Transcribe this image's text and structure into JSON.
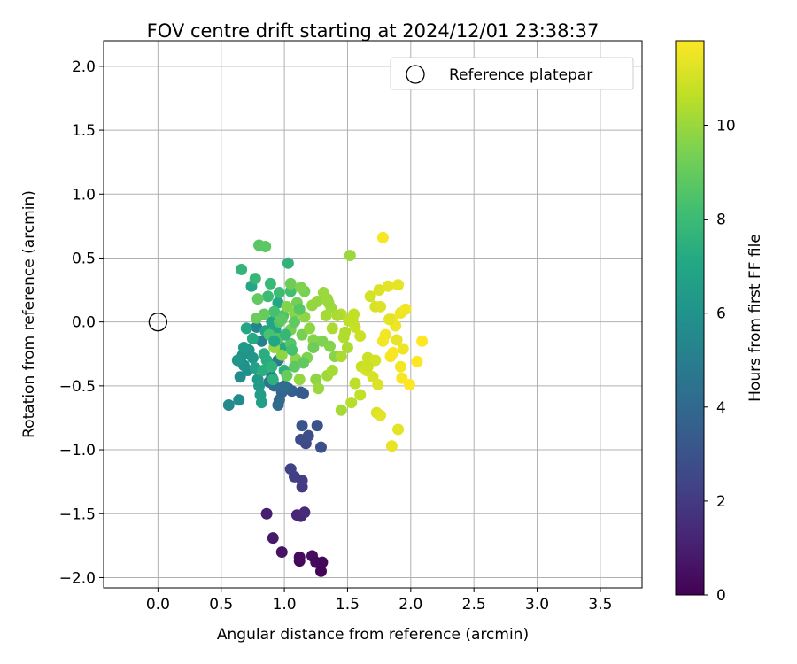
{
  "chart_data": {
    "type": "scatter",
    "title": "FOV centre drift starting at 2024/12/01 23:38:37",
    "xlabel": "Angular distance from reference (arcmin)",
    "ylabel": "Rotation from reference (arcmin)",
    "xlim": [
      -0.43,
      3.83
    ],
    "ylim": [
      -2.08,
      2.2
    ],
    "xticks": [
      0.0,
      0.5,
      1.0,
      1.5,
      2.0,
      2.5,
      3.0,
      3.5
    ],
    "xtick_labels": [
      "0.0",
      "0.5",
      "1.0",
      "1.5",
      "2.0",
      "2.5",
      "3.0",
      "3.5"
    ],
    "yticks": [
      -2.0,
      -1.5,
      -1.0,
      -0.5,
      0.0,
      0.5,
      1.0,
      1.5,
      2.0
    ],
    "ytick_labels": [
      "−2.0",
      "−1.5",
      "−1.0",
      "−0.5",
      "0.0",
      "0.5",
      "1.0",
      "1.5",
      "2.0"
    ],
    "grid": true,
    "legend": {
      "placement": "upper right",
      "entries": [
        {
          "label": "Reference platepar",
          "marker": "open-circle",
          "x": 0.0,
          "y": 0.0
        }
      ]
    },
    "colorbar": {
      "label": "Hours from first FF file",
      "colormap": "viridis",
      "range": [
        0,
        11.8
      ],
      "ticks": [
        0,
        2,
        4,
        6,
        8,
        10
      ],
      "tick_labels": [
        "0",
        "2",
        "4",
        "6",
        "8",
        "10"
      ]
    },
    "reference": {
      "x": 0.0,
      "y": 0.0
    },
    "series": [
      {
        "points": [
          [
            1.12,
            -1.87,
            0.2
          ],
          [
            1.12,
            -1.84,
            0.3
          ],
          [
            1.22,
            -1.83,
            0.4
          ],
          [
            1.25,
            -1.88,
            0.3
          ],
          [
            1.29,
            -1.95,
            0.1
          ],
          [
            1.3,
            -1.88,
            0.2
          ],
          [
            0.98,
            -1.8,
            0.6
          ],
          [
            0.91,
            -1.69,
            0.8
          ],
          [
            0.86,
            -1.5,
            1.0
          ],
          [
            1.1,
            -1.51,
            1.2
          ],
          [
            1.13,
            -1.52,
            1.3
          ],
          [
            1.16,
            -1.49,
            1.4
          ],
          [
            1.14,
            -1.29,
            2.0
          ],
          [
            1.14,
            -1.24,
            2.1
          ],
          [
            1.08,
            -1.21,
            2.2
          ],
          [
            1.05,
            -1.15,
            2.3
          ],
          [
            1.17,
            -0.95,
            2.6
          ],
          [
            1.13,
            -0.92,
            2.7
          ],
          [
            1.19,
            -0.89,
            2.8
          ],
          [
            1.29,
            -0.98,
            2.9
          ],
          [
            1.26,
            -0.81,
            3.0
          ],
          [
            1.14,
            -0.81,
            3.1
          ],
          [
            1.13,
            -0.55,
            3.3
          ],
          [
            1.15,
            -0.56,
            3.4
          ],
          [
            1.06,
            -0.54,
            3.6
          ],
          [
            1.03,
            -0.52,
            3.7
          ],
          [
            0.98,
            -0.55,
            3.8
          ],
          [
            0.96,
            -0.61,
            4.0
          ],
          [
            0.95,
            -0.65,
            4.1
          ],
          [
            1.0,
            -0.5,
            4.2
          ],
          [
            0.92,
            -0.5,
            4.4
          ],
          [
            0.88,
            -0.47,
            4.6
          ],
          [
            0.9,
            -0.43,
            4.8
          ],
          [
            0.95,
            -0.3,
            4.9
          ],
          [
            0.82,
            -0.15,
            5.1
          ],
          [
            0.78,
            -0.04,
            5.3
          ],
          [
            0.56,
            -0.65,
            5.5
          ],
          [
            0.64,
            -0.61,
            5.6
          ],
          [
            0.65,
            -0.43,
            5.7
          ],
          [
            0.71,
            -0.38,
            5.8
          ],
          [
            0.68,
            -0.34,
            5.9
          ],
          [
            0.67,
            -0.26,
            6.0
          ],
          [
            0.72,
            -0.22,
            6.1
          ],
          [
            0.75,
            -0.28,
            6.2
          ],
          [
            0.79,
            -0.45,
            6.3
          ],
          [
            0.8,
            -0.5,
            6.4
          ],
          [
            0.81,
            -0.57,
            6.5
          ],
          [
            0.82,
            -0.63,
            6.6
          ],
          [
            0.77,
            -0.36,
            6.7
          ],
          [
            0.85,
            -0.07,
            6.8
          ],
          [
            0.9,
            0.0,
            6.9
          ],
          [
            0.93,
            -0.06,
            7.0
          ],
          [
            0.74,
            0.28,
            7.0
          ],
          [
            0.95,
            0.15,
            7.1
          ],
          [
            0.98,
            -0.2,
            7.2
          ],
          [
            0.86,
            -0.3,
            7.3
          ],
          [
            0.83,
            -0.38,
            7.4
          ],
          [
            0.91,
            -0.45,
            7.5
          ],
          [
            1.0,
            -0.38,
            7.5
          ],
          [
            1.03,
            0.46,
            7.6
          ],
          [
            0.66,
            0.41,
            7.7
          ],
          [
            0.77,
            0.34,
            7.8
          ],
          [
            0.89,
            0.3,
            7.9
          ],
          [
            0.87,
            0.2,
            8.0
          ],
          [
            0.96,
            0.23,
            8.1
          ],
          [
            1.05,
            0.24,
            8.2
          ],
          [
            0.92,
            0.08,
            8.3
          ],
          [
            0.99,
            0.05,
            8.4
          ],
          [
            0.95,
            -0.13,
            8.5
          ],
          [
            1.05,
            -0.17,
            8.6
          ],
          [
            0.8,
            0.6,
            8.7
          ],
          [
            0.85,
            0.59,
            8.8
          ],
          [
            0.79,
            0.18,
            8.9
          ],
          [
            0.84,
            0.06,
            9.0
          ],
          [
            0.78,
            0.03,
            9.1
          ],
          [
            1.05,
            0.3,
            9.2
          ],
          [
            1.1,
            0.15,
            9.3
          ],
          [
            1.16,
            0.24,
            9.4
          ],
          [
            1.13,
            0.27,
            9.5
          ],
          [
            1.02,
            0.12,
            9.6
          ],
          [
            1.08,
            0.07,
            9.7
          ],
          [
            1.16,
            0.04,
            9.8
          ],
          [
            1.22,
            0.13,
            9.9
          ],
          [
            1.26,
            0.16,
            9.9
          ],
          [
            1.31,
            0.23,
            10.0
          ],
          [
            1.34,
            0.18,
            10.0
          ],
          [
            1.37,
            0.11,
            10.1
          ],
          [
            1.05,
            -0.06,
            9.3
          ],
          [
            1.14,
            -0.1,
            9.4
          ],
          [
            1.18,
            -0.28,
            9.5
          ],
          [
            1.23,
            -0.14,
            9.6
          ],
          [
            1.09,
            -0.29,
            9.7
          ],
          [
            0.98,
            -0.26,
            9.8
          ],
          [
            0.92,
            -0.2,
            9.9
          ],
          [
            1.3,
            -0.15,
            9.5
          ],
          [
            1.36,
            -0.19,
            9.6
          ],
          [
            1.4,
            -0.27,
            9.7
          ],
          [
            1.25,
            -0.45,
            9.8
          ],
          [
            1.12,
            -0.45,
            9.9
          ],
          [
            1.27,
            -0.52,
            10.0
          ],
          [
            1.34,
            -0.42,
            10.1
          ],
          [
            1.38,
            -0.38,
            10.2
          ],
          [
            1.45,
            -0.27,
            10.3
          ],
          [
            1.5,
            -0.2,
            10.3
          ],
          [
            1.48,
            -0.08,
            10.4
          ],
          [
            1.45,
            0.06,
            10.5
          ],
          [
            1.51,
            0.01,
            10.6
          ],
          [
            1.55,
            0.06,
            10.7
          ],
          [
            1.56,
            -0.04,
            10.8
          ],
          [
            1.6,
            -0.11,
            10.9
          ],
          [
            1.52,
            0.52,
            10.0
          ],
          [
            1.53,
            -0.63,
            10.5
          ],
          [
            1.56,
            -0.48,
            10.6
          ],
          [
            1.61,
            -0.35,
            10.8
          ],
          [
            1.66,
            -0.28,
            10.9
          ],
          [
            1.72,
            -0.3,
            11.0
          ],
          [
            1.65,
            -0.38,
            11.1
          ],
          [
            1.7,
            -0.43,
            11.1
          ],
          [
            1.74,
            -0.49,
            11.2
          ],
          [
            1.45,
            -0.69,
            10.2
          ],
          [
            1.73,
            -0.71,
            11.2
          ],
          [
            1.76,
            -0.73,
            11.3
          ],
          [
            1.85,
            -0.97,
            11.4
          ],
          [
            1.9,
            -0.84,
            11.3
          ],
          [
            1.68,
            0.2,
            11.0
          ],
          [
            1.72,
            0.12,
            11.1
          ],
          [
            1.75,
            0.25,
            11.2
          ],
          [
            1.82,
            0.28,
            11.3
          ],
          [
            1.9,
            0.29,
            11.4
          ],
          [
            1.92,
            0.07,
            11.5
          ],
          [
            1.96,
            0.1,
            11.6
          ],
          [
            1.78,
            0.66,
            11.7
          ],
          [
            1.85,
            0.02,
            11.5
          ],
          [
            1.88,
            -0.03,
            11.5
          ],
          [
            1.8,
            -0.1,
            11.6
          ],
          [
            1.78,
            -0.15,
            11.6
          ],
          [
            1.86,
            -0.24,
            11.7
          ],
          [
            1.84,
            -0.27,
            11.7
          ],
          [
            1.92,
            -0.35,
            11.6
          ],
          [
            1.93,
            -0.44,
            11.7
          ],
          [
            1.99,
            -0.49,
            11.8
          ],
          [
            2.05,
            -0.31,
            11.8
          ],
          [
            2.09,
            -0.15,
            11.8
          ],
          [
            1.94,
            -0.21,
            11.5
          ],
          [
            1.89,
            -0.14,
            11.4
          ],
          [
            1.83,
            0.02,
            11.3
          ],
          [
            1.76,
            0.12,
            11.2
          ],
          [
            1.54,
            0.02,
            10.7
          ],
          [
            1.47,
            -0.12,
            10.4
          ],
          [
            1.42,
            0.05,
            10.3
          ],
          [
            1.2,
            -0.05,
            9.8
          ],
          [
            1.02,
            -0.42,
            9.0
          ],
          [
            1.08,
            -0.35,
            8.8
          ],
          [
            1.15,
            -0.32,
            8.9
          ],
          [
            1.23,
            -0.2,
            9.2
          ],
          [
            0.88,
            -0.1,
            8.4
          ],
          [
            0.96,
            0.0,
            8.6
          ],
          [
            1.08,
            0.0,
            8.9
          ],
          [
            0.9,
            -0.35,
            7.6
          ],
          [
            0.84,
            -0.25,
            7.4
          ],
          [
            0.75,
            -0.13,
            7.2
          ],
          [
            0.7,
            -0.05,
            7.0
          ],
          [
            0.68,
            -0.2,
            6.3
          ],
          [
            0.63,
            -0.3,
            6.2
          ],
          [
            0.92,
            -0.15,
            7.0
          ],
          [
            1.01,
            -0.1,
            7.8
          ],
          [
            1.12,
            0.1,
            8.7
          ],
          [
            1.33,
            0.05,
            10.2
          ],
          [
            1.38,
            -0.05,
            10.3
          ],
          [
            1.6,
            -0.57,
            10.7
          ],
          [
            1.66,
            -0.35,
            10.9
          ],
          [
            1.35,
            0.15,
            10.0
          ],
          [
            0.98,
            0.02,
            8.8
          ],
          [
            1.06,
            -0.22,
            8.3
          ]
        ]
      }
    ]
  }
}
